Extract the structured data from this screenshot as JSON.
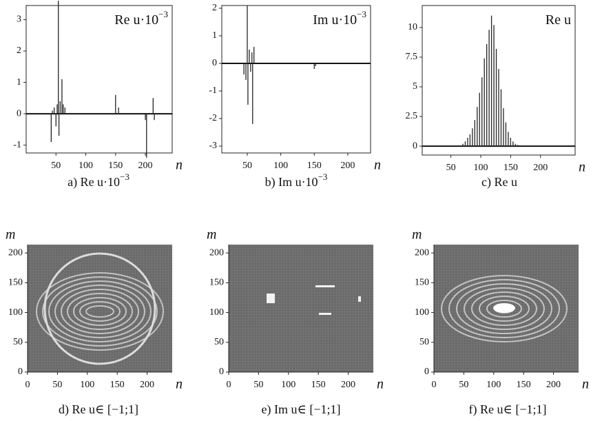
{
  "chart_data": [
    {
      "type": "stem",
      "label": "Re u·10",
      "label_sup": "−3",
      "caption": "a) Re u·10",
      "caption_sup": "−3",
      "xlabel": "n",
      "x": [
        42,
        44,
        47,
        50,
        52,
        54,
        55,
        57,
        60,
        62,
        65,
        150,
        155,
        200,
        202,
        213,
        215
      ],
      "values": [
        -0.9,
        0.1,
        0.2,
        -0.4,
        0.3,
        3.6,
        -0.7,
        0.4,
        1.1,
        0.3,
        0.2,
        0.6,
        0.2,
        -0.2,
        -1.4,
        0.5,
        -0.2
      ],
      "xlim": [
        0,
        245
      ],
      "ylim": [
        -1.25,
        3.45
      ],
      "xticks": [
        50,
        100,
        150,
        200
      ],
      "yticks": [
        -1,
        0,
        1,
        2,
        3
      ],
      "color": "#222222"
    },
    {
      "type": "stem",
      "label": "Im u·10",
      "label_sup": "−3",
      "caption": "b) Im u·10",
      "caption_sup": "−3",
      "xlabel": "n",
      "x": [
        45,
        48,
        50,
        51,
        53,
        55,
        57,
        58,
        60,
        150,
        152
      ],
      "values": [
        -0.4,
        -0.6,
        2.1,
        -1.5,
        0.5,
        -0.3,
        0.4,
        -2.2,
        0.6,
        -0.2,
        -0.1
      ],
      "xlim": [
        12,
        234
      ],
      "ylim": [
        -3.25,
        2.1
      ],
      "xticks": [
        50,
        100,
        150,
        200
      ],
      "yticks": [
        -3,
        -2,
        -1,
        0,
        1,
        2
      ],
      "color": "#222222"
    },
    {
      "type": "stem",
      "label": "Re u",
      "caption": "c) Re u",
      "xlabel": "n",
      "x": [
        70,
        74,
        78,
        82,
        86,
        90,
        94,
        98,
        102,
        106,
        110,
        114,
        118,
        122,
        126,
        130,
        134,
        138,
        142,
        146,
        150,
        154,
        158,
        162
      ],
      "values": [
        0.2,
        0.4,
        0.7,
        1.0,
        1.5,
        2.2,
        3.3,
        4.5,
        5.8,
        7.4,
        8.6,
        9.8,
        11.0,
        10.2,
        8.2,
        6.5,
        4.8,
        3.2,
        2.0,
        1.2,
        0.7,
        0.4,
        0.2,
        0.1
      ],
      "xlim": [
        2,
        258
      ],
      "ylim": [
        -0.75,
        11.85
      ],
      "xticks": [
        50,
        100,
        150,
        200
      ],
      "yticks": [
        0,
        2.5,
        5,
        7.5,
        10
      ],
      "color": "#222222"
    },
    {
      "type": "image",
      "caption": "d) Re u∈ [−1;1]",
      "xlabel": "n",
      "ylabel": "m",
      "xlim": [
        0,
        242
      ],
      "ylim": [
        0,
        214
      ],
      "xticks": [
        0,
        50,
        100,
        150,
        200
      ],
      "yticks": [
        0,
        50,
        100,
        150,
        200
      ]
    },
    {
      "type": "image",
      "caption": "e) Im u∈ [−1;1]",
      "xlabel": "n",
      "ylabel": "m",
      "xlim": [
        0,
        242
      ],
      "ylim": [
        0,
        214
      ],
      "xticks": [
        0,
        50,
        100,
        150,
        200
      ],
      "yticks": [
        0,
        50,
        100,
        150,
        200
      ]
    },
    {
      "type": "image",
      "caption": "f) Re u∈ [−1;1]",
      "xlabel": "n",
      "ylabel": "m",
      "xlim": [
        0,
        242
      ],
      "ylim": [
        0,
        214
      ],
      "xticks": [
        0,
        50,
        100,
        150,
        200
      ],
      "yticks": [
        0,
        50,
        100,
        150,
        200
      ]
    }
  ]
}
